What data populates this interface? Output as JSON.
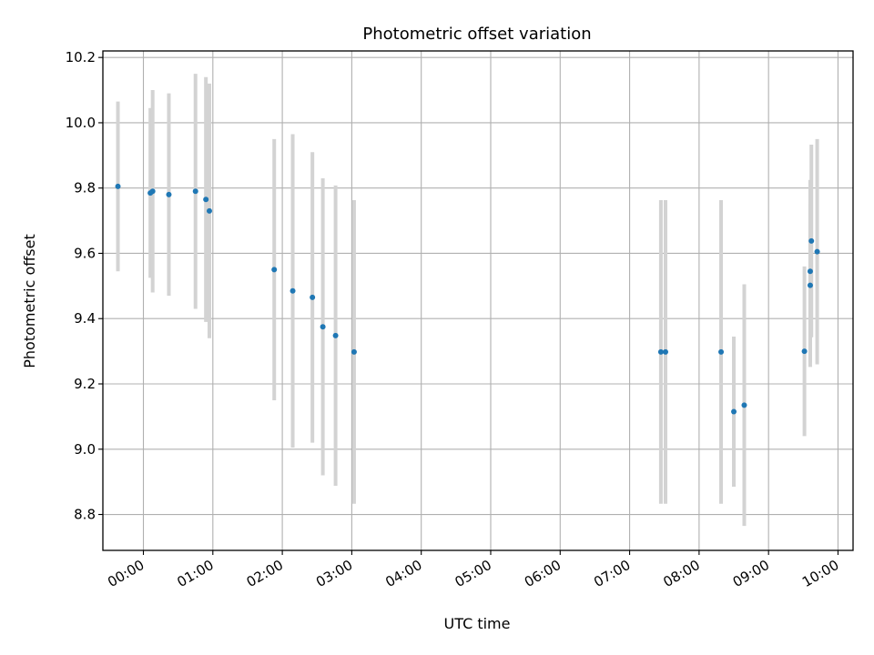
{
  "chart_data": {
    "type": "scatter",
    "title": "Photometric offset variation",
    "xlabel": "UTC time",
    "ylabel": "Photometric offset",
    "x_is_time": true,
    "xlim": [
      "23:25",
      "10:13"
    ],
    "ylim": [
      8.69,
      10.22
    ],
    "xticks": [
      "00:00",
      "01:00",
      "02:00",
      "03:00",
      "04:00",
      "05:00",
      "06:00",
      "07:00",
      "08:00",
      "09:00",
      "10:00"
    ],
    "yticks": [
      "8.8",
      "9.0",
      "9.2",
      "9.4",
      "9.6",
      "9.8",
      "10.0",
      "10.2"
    ],
    "grid": true,
    "colors": {
      "point": "#1f77b4",
      "errorbar": "#d3d3d3",
      "grid": "#b0b0b0"
    },
    "points": [
      {
        "x": "23:38",
        "y": 9.805,
        "err": 0.26
      },
      {
        "x": "00:06",
        "y": 9.785,
        "err": 0.26
      },
      {
        "x": "00:08",
        "y": 9.79,
        "err": 0.31
      },
      {
        "x": "00:22",
        "y": 9.78,
        "err": 0.31
      },
      {
        "x": "00:45",
        "y": 9.79,
        "err": 0.36
      },
      {
        "x": "00:54",
        "y": 9.765,
        "err": 0.375
      },
      {
        "x": "00:57",
        "y": 9.73,
        "err": 0.39
      },
      {
        "x": "01:53",
        "y": 9.55,
        "err": 0.4
      },
      {
        "x": "02:09",
        "y": 9.485,
        "err": 0.48
      },
      {
        "x": "02:26",
        "y": 9.465,
        "err": 0.445
      },
      {
        "x": "02:35",
        "y": 9.375,
        "err": 0.455
      },
      {
        "x": "02:46",
        "y": 9.348,
        "err": 0.46
      },
      {
        "x": "03:02",
        "y": 9.298,
        "err": 0.465
      },
      {
        "x": "07:27",
        "y": 9.298,
        "err": 0.465
      },
      {
        "x": "07:31",
        "y": 9.298,
        "err": 0.465
      },
      {
        "x": "08:19",
        "y": 9.298,
        "err": 0.465
      },
      {
        "x": "08:30",
        "y": 9.115,
        "err": 0.23
      },
      {
        "x": "08:39",
        "y": 9.135,
        "err": 0.37
      },
      {
        "x": "09:31",
        "y": 9.3,
        "err": 0.26
      },
      {
        "x": "09:36",
        "y": 9.545,
        "err": 0.28
      },
      {
        "x": "09:36",
        "y": 9.502,
        "err": 0.25
      },
      {
        "x": "09:37",
        "y": 9.638,
        "err": 0.295
      },
      {
        "x": "09:42",
        "y": 9.605,
        "err": 0.345
      }
    ]
  }
}
